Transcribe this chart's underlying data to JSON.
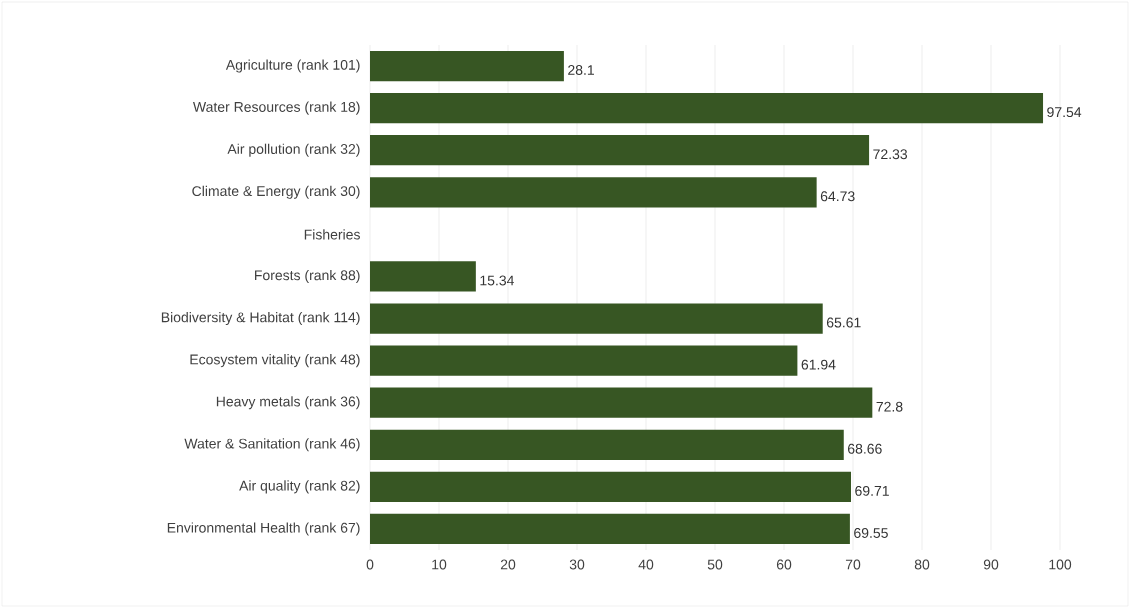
{
  "chart_data": {
    "type": "bar",
    "orientation": "horizontal",
    "categories": [
      "Agriculture (rank 101)",
      "Water Resources (rank 18)",
      "Air pollution (rank 32)",
      "Climate & Energy (rank 30)",
      "Fisheries",
      "Forests (rank 88)",
      "Biodiversity & Habitat (rank 114)",
      "Ecosystem vitality (rank 48)",
      "Heavy metals (rank 36)",
      "Water & Sanitation (rank 46)",
      "Air quality (rank 82)",
      "Environmental Health (rank 67)"
    ],
    "values": [
      28.1,
      97.54,
      72.33,
      64.73,
      null,
      15.34,
      65.61,
      61.94,
      72.8,
      68.66,
      69.71,
      69.55
    ],
    "color": "#375623",
    "xlim": [
      0,
      100
    ],
    "xticks": [
      0,
      10,
      20,
      30,
      40,
      50,
      60,
      70,
      80,
      90,
      100
    ],
    "grid": "x",
    "data_labels": true
  }
}
